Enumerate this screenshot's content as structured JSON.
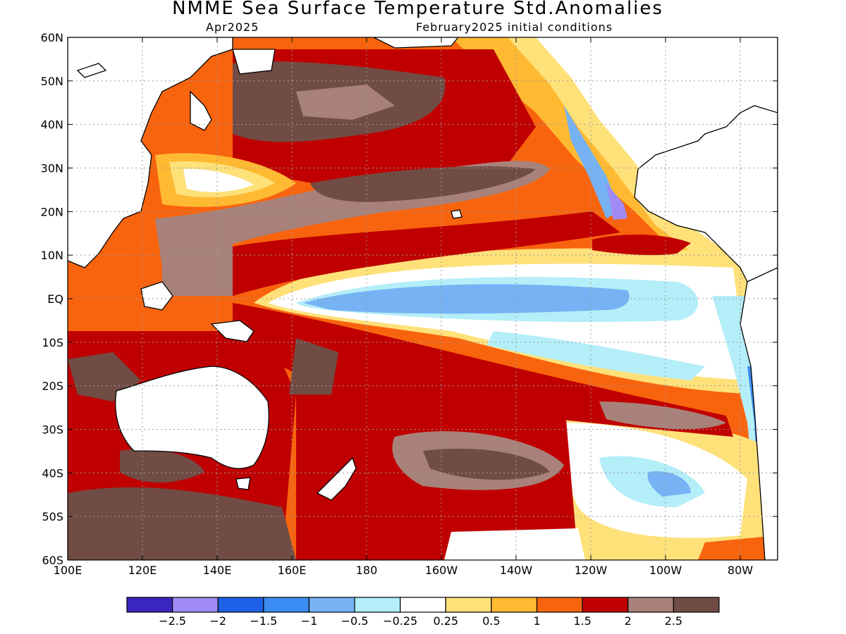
{
  "title": "NMME Sea Surface Temperature Std.Anomalies",
  "subtitle_left": "Apr2025",
  "subtitle_right": "February2025 initial conditions",
  "map": {
    "lat_labels": [
      "60N",
      "50N",
      "40N",
      "30N",
      "20N",
      "10N",
      "EQ",
      "10S",
      "20S",
      "30S",
      "40S",
      "50S",
      "60S"
    ],
    "lon_labels": [
      "100E",
      "120E",
      "140E",
      "160E",
      "180",
      "160W",
      "140W",
      "120W",
      "100W",
      "80W"
    ],
    "lat_range": [
      -60,
      60
    ],
    "lon_range": [
      100,
      290
    ],
    "grid": true,
    "land_color": "#ffffff",
    "ocean_base_color": "#e8561a"
  },
  "colorbar": {
    "colors": [
      "#3a25be",
      "#a08af6",
      "#1f61e6",
      "#3a8cf2",
      "#76b2f4",
      "#b4eef8",
      "#ffffff",
      "#ffe17a",
      "#ffb932",
      "#f8640e",
      "#c00000",
      "#a8827a",
      "#704c44"
    ],
    "tick_labels": [
      "-2.5",
      "-2",
      "-1.5",
      "-1",
      "-0.5",
      "-0.25",
      "0.25",
      "0.5",
      "1",
      "1.5",
      "2",
      "2.5"
    ]
  }
}
